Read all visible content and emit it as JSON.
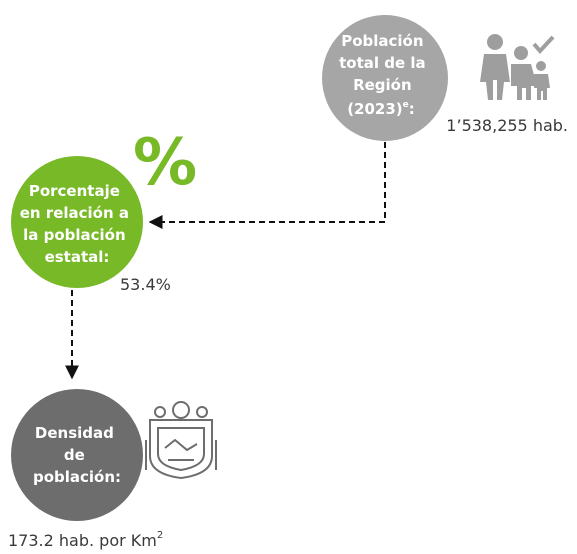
{
  "nodes": [
    {
      "label_lines": [
        "Población",
        "total de la",
        "Región",
        "(2023)"
      ],
      "label_mark": "e",
      "label_end": ":",
      "value": "1’538,255 hab."
    },
    {
      "label_lines": [
        "Porcentaje",
        "en relación a",
        "la población",
        "estatal:"
      ],
      "icon": "%",
      "value": "53.4%"
    },
    {
      "label_lines": [
        "Densidad",
        "de",
        "población:"
      ],
      "value": "173.2 hab. por Km",
      "value_mark": "2"
    }
  ]
}
